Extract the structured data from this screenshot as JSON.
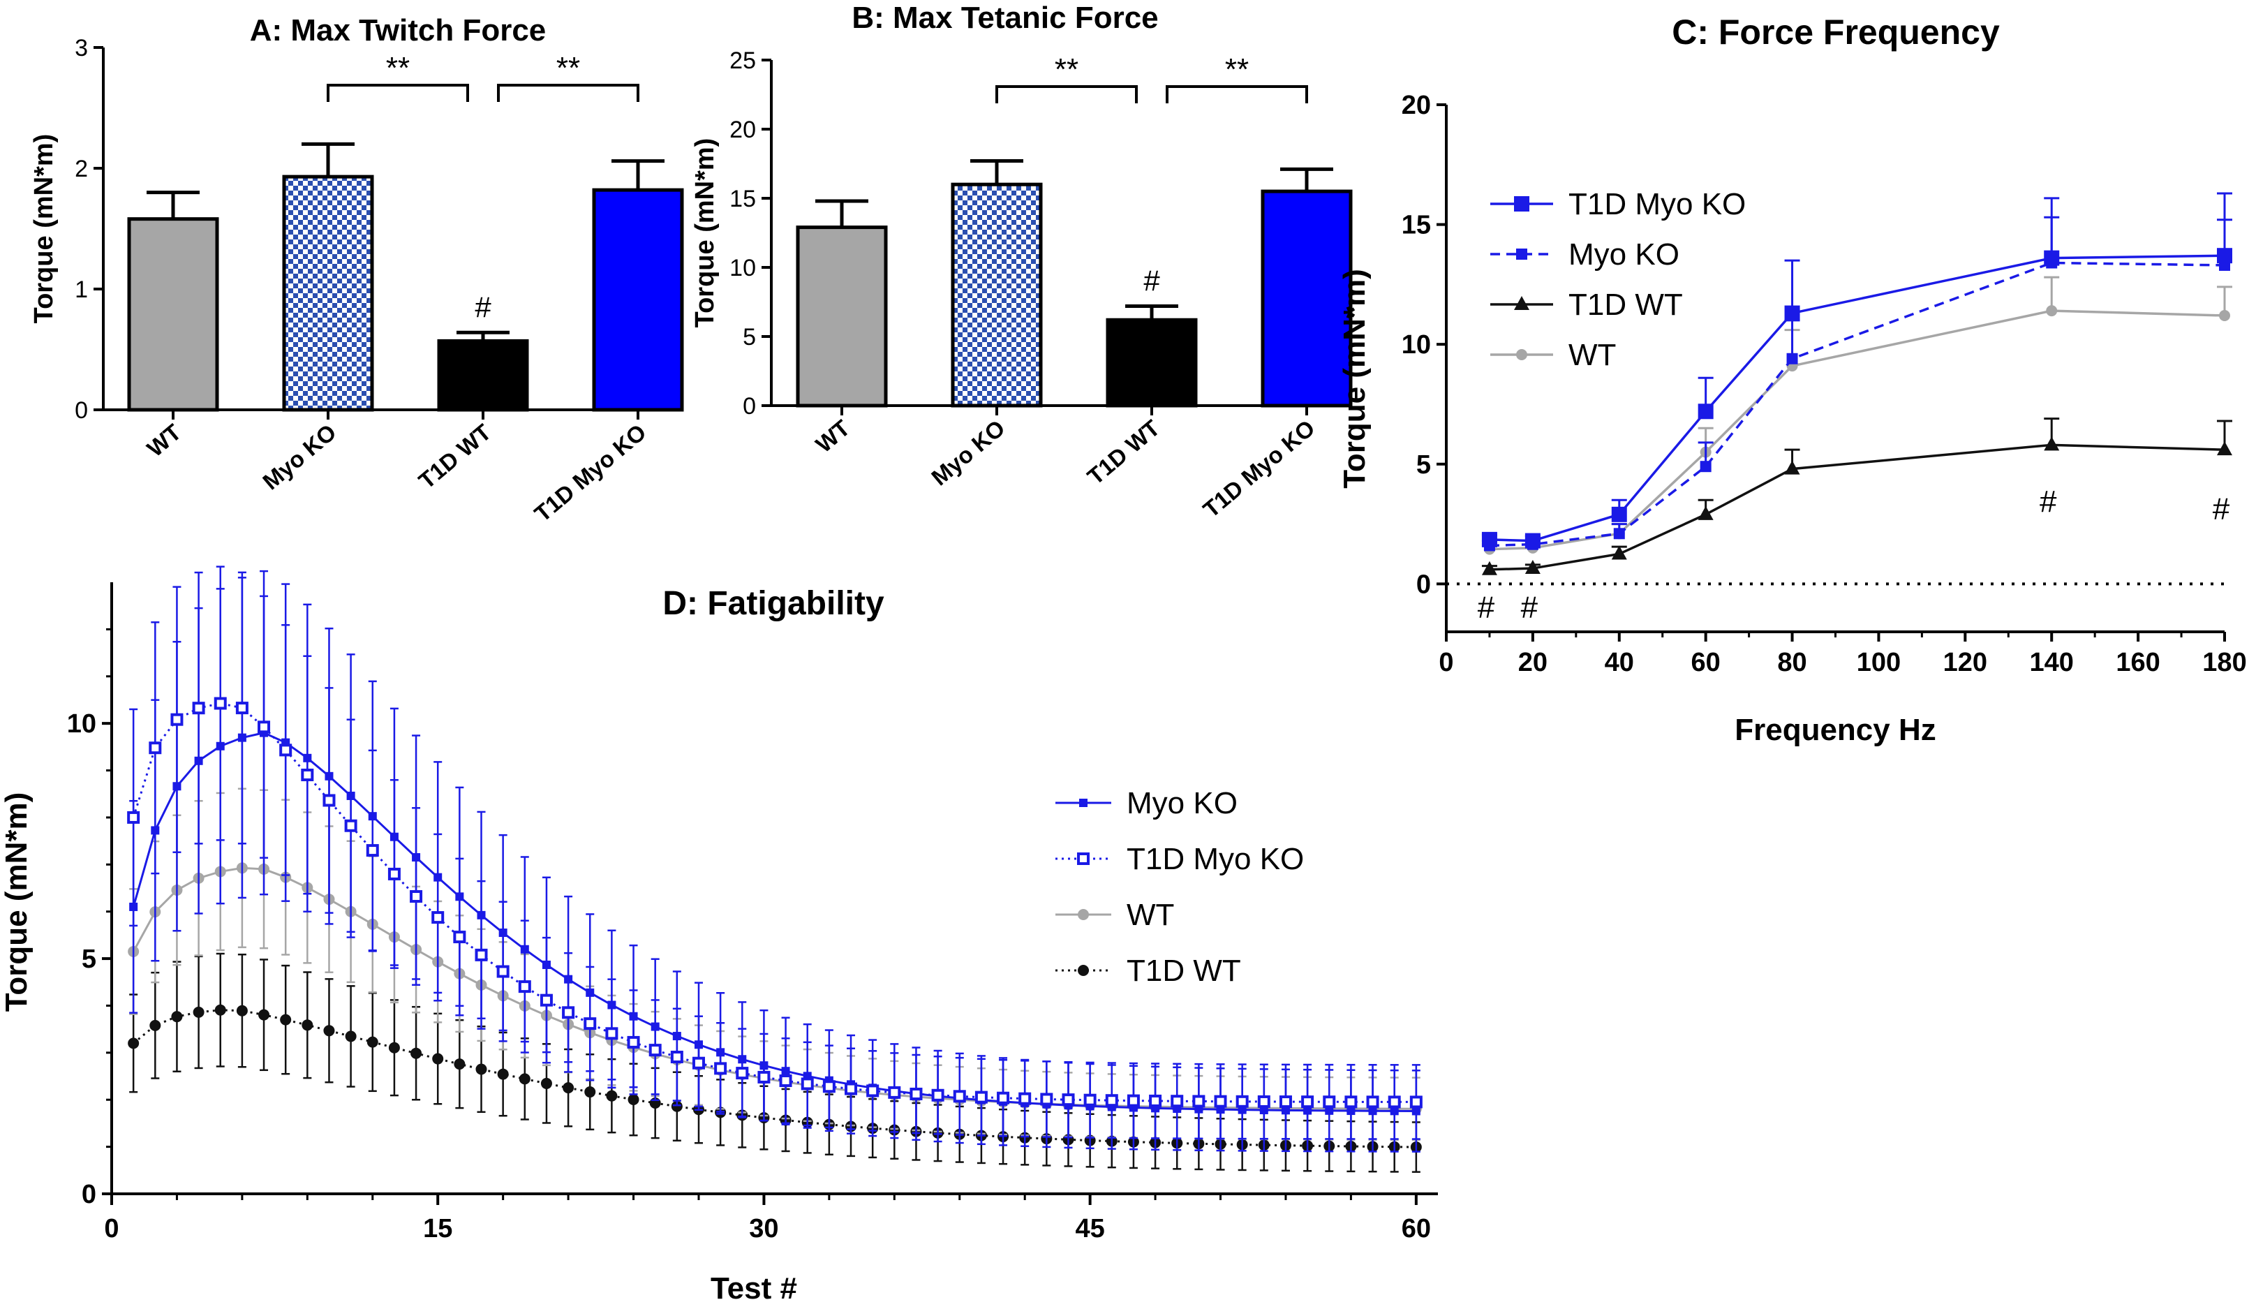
{
  "chart_data": [
    {
      "id": "A",
      "type": "bar",
      "title": "A: Max Twitch Force",
      "xlabel": "",
      "ylabel": "Torque (mN*m)",
      "ylim": [
        0,
        3
      ],
      "yticks": [
        0,
        1,
        2,
        3
      ],
      "categories": [
        "WT",
        "Myo KO",
        "T1D WT",
        "T1D Myo KO"
      ],
      "values": [
        1.58,
        1.93,
        0.57,
        1.82
      ],
      "errors": [
        0.22,
        0.27,
        0.07,
        0.24
      ],
      "bar_styles": [
        "gray",
        "checker",
        "black",
        "blue"
      ],
      "marks": [
        {
          "category": "T1D WT",
          "text": "#"
        }
      ],
      "brackets": [
        {
          "from": "Myo KO",
          "to": "T1D WT",
          "text": "**"
        },
        {
          "from": "T1D WT",
          "to": "T1D Myo KO",
          "text": "**"
        }
      ]
    },
    {
      "id": "B",
      "type": "bar",
      "title": "B: Max Tetanic Force",
      "xlabel": "",
      "ylabel": "Torque (mN*m)",
      "ylim": [
        0,
        25
      ],
      "yticks": [
        0,
        5,
        10,
        15,
        20,
        25
      ],
      "categories": [
        "WT",
        "Myo KO",
        "T1D WT",
        "T1D Myo KO"
      ],
      "values": [
        12.9,
        16.0,
        6.2,
        15.5
      ],
      "errors": [
        1.9,
        1.7,
        1.0,
        1.6
      ],
      "bar_styles": [
        "gray",
        "checker",
        "black",
        "blue"
      ],
      "marks": [
        {
          "category": "T1D WT",
          "text": "#"
        }
      ],
      "brackets": [
        {
          "from": "Myo KO",
          "to": "T1D WT",
          "text": "**"
        },
        {
          "from": "T1D WT",
          "to": "T1D Myo KO",
          "text": "**"
        }
      ]
    },
    {
      "id": "C",
      "type": "line",
      "title": "C: Force Frequency",
      "xlabel": "Frequency Hz",
      "ylabel": "Torque (mN*m)",
      "xlim": [
        0,
        180
      ],
      "ylim": [
        -2,
        20
      ],
      "xticks": [
        0,
        20,
        40,
        60,
        80,
        100,
        120,
        140,
        160,
        180
      ],
      "yticks": [
        0,
        5,
        10,
        15,
        20
      ],
      "zero_line": true,
      "x": [
        10,
        20,
        40,
        60,
        80,
        140,
        180
      ],
      "series": [
        {
          "name": "T1D Myo KO",
          "color": "#1a1ae6",
          "marker": "square",
          "dash": "solid",
          "values": [
            1.85,
            1.8,
            2.9,
            7.2,
            11.3,
            13.6,
            13.7
          ],
          "errors": [
            0.2,
            0.2,
            0.6,
            1.4,
            2.2,
            2.5,
            2.6
          ]
        },
        {
          "name": "Myo KO",
          "color": "#1a1ae6",
          "marker": "square-small",
          "dash": "dashed",
          "values": [
            1.6,
            1.65,
            2.1,
            4.9,
            9.4,
            13.4,
            13.3
          ],
          "errors": [
            0.2,
            0.2,
            0.4,
            1.0,
            1.6,
            1.9,
            1.9
          ]
        },
        {
          "name": "T1D WT",
          "color": "#111111",
          "marker": "triangle",
          "dash": "solid",
          "values": [
            0.6,
            0.65,
            1.25,
            2.9,
            4.8,
            5.8,
            5.6
          ],
          "errors": [
            0.15,
            0.15,
            0.3,
            0.6,
            0.8,
            1.1,
            1.2
          ]
        },
        {
          "name": "WT",
          "color": "#a6a6a6",
          "marker": "circle",
          "dash": "solid",
          "values": [
            1.45,
            1.5,
            2.1,
            5.5,
            9.1,
            11.4,
            11.2
          ],
          "errors": [
            0.2,
            0.2,
            0.4,
            1.0,
            1.5,
            1.4,
            1.2
          ]
        }
      ],
      "annotations": [
        {
          "x": 10,
          "text": "#",
          "position": "below"
        },
        {
          "x": 20,
          "text": "#",
          "position": "below"
        },
        {
          "x": 140,
          "text": "#",
          "position": "below-series",
          "series": "T1D WT"
        },
        {
          "x": 180,
          "text": "#",
          "position": "below-series",
          "series": "T1D WT"
        }
      ]
    },
    {
      "id": "D",
      "type": "line",
      "title": "D: Fatigability",
      "xlabel": "Test #",
      "ylabel": "Torque (mN*m)",
      "xlim": [
        0,
        61
      ],
      "ylim": [
        0,
        13
      ],
      "xticks": [
        0,
        15,
        30,
        45,
        60
      ],
      "yticks": [
        0,
        5,
        10
      ],
      "n_points": 60,
      "series": [
        {
          "name": "Myo KO",
          "color": "#1a1ae6",
          "marker": "square-filled",
          "dash": "solid",
          "curve": {
            "start": 6.1,
            "peak": 9.8,
            "peak_at": 7,
            "rise_k": 0.55,
            "end": 1.75,
            "decay_s": 13.5,
            "decay_p": 1.4
          },
          "error_scale": 0.32
        },
        {
          "name": "T1D Myo KO",
          "color": "#1a1ae6",
          "marker": "square-open",
          "dash": "dotted",
          "curve": {
            "start": 8.0,
            "peak": 10.45,
            "peak_at": 5.5,
            "rise_k": 0.9,
            "end": 1.95,
            "decay_s": 11.5,
            "decay_p": 1.35
          },
          "error_scale": 0.25
        },
        {
          "name": "WT",
          "color": "#a6a6a6",
          "marker": "circle",
          "dash": "solid",
          "curve": {
            "start": 5.15,
            "peak": 6.95,
            "peak_at": 6.5,
            "rise_k": 0.6,
            "end": 1.8,
            "decay_s": 14.0,
            "decay_p": 1.4
          },
          "error_scale": 0.2
        },
        {
          "name": "T1D WT",
          "color": "#111111",
          "marker": "circle-filled",
          "dash": "dotted",
          "curve": {
            "start": 3.2,
            "peak": 3.92,
            "peak_at": 5.5,
            "rise_k": 0.7,
            "end": 0.95,
            "decay_s": 18.0,
            "decay_p": 1.3
          },
          "error_scale": 0.23
        }
      ]
    }
  ]
}
